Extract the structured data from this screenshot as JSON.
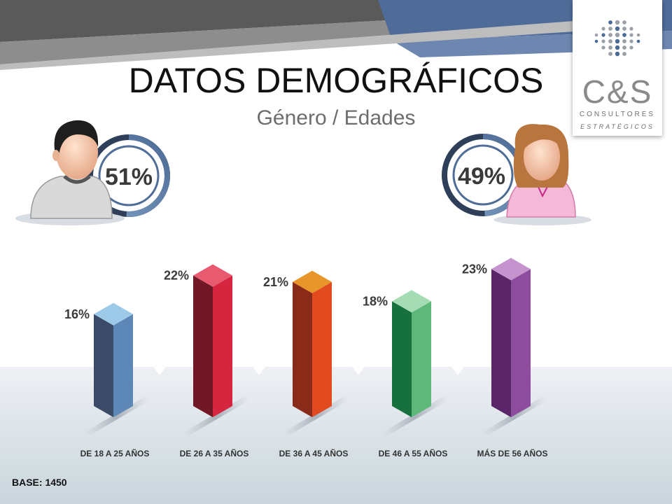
{
  "header": {
    "title": "DATOS DEMOGRÁFICOS",
    "subtitle": "Género / Edades"
  },
  "logo": {
    "mark": "C&S",
    "line1": "CONSULTORES",
    "line2": "ESTRATÉGICOS",
    "dots_icon": "dot-matrix-icon"
  },
  "gender": {
    "male": {
      "label": "51%",
      "value": 51,
      "icon": "male-avatar-icon"
    },
    "female": {
      "label": "49%",
      "value": 49,
      "icon": "female-avatar-icon"
    }
  },
  "chart_data": {
    "type": "bar",
    "title": "",
    "xlabel": "",
    "ylabel": "",
    "ylim": [
      0,
      25
    ],
    "grid": false,
    "categories": [
      "DE 18 A 25 AÑOS",
      "DE 26 A 35 AÑOS",
      "DE 36 A 45 AÑOS",
      "DE 46 A 55 AÑOS",
      "MÁS DE 56 AÑOS"
    ],
    "values": [
      16,
      22,
      21,
      18,
      23
    ],
    "data_labels": [
      "16%",
      "22%",
      "21%",
      "18%",
      "23%"
    ],
    "colors": [
      {
        "top": "#9ecae9",
        "front": "#5d87b7",
        "side": "#3b4a66"
      },
      {
        "top": "#e85a70",
        "front": "#d6263f",
        "side": "#711726"
      },
      {
        "top": "#e8962a",
        "front": "#e24a1f",
        "side": "#8a2a18"
      },
      {
        "top": "#a6dcb4",
        "front": "#5db87a",
        "side": "#16713f"
      },
      {
        "top": "#c594cf",
        "front": "#8e4c9e",
        "side": "#5a2668"
      }
    ]
  },
  "footer": {
    "base": "BASE: 1450"
  }
}
